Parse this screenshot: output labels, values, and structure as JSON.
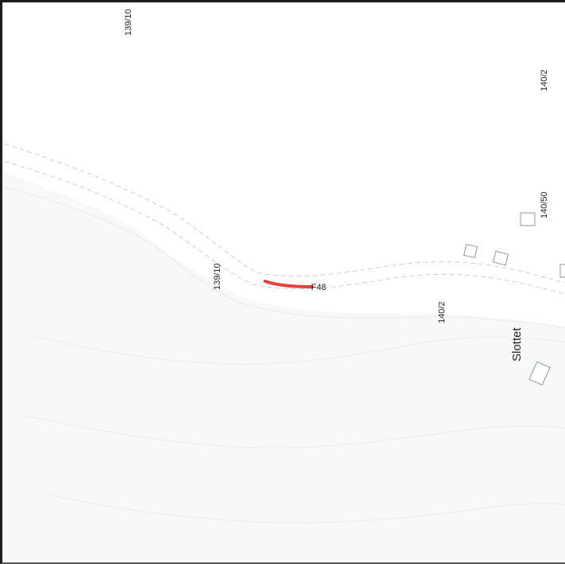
{
  "map": {
    "highlight_color": "#e8403f",
    "road_label": "F48",
    "parcel_labels": [
      "139/10",
      "140/2",
      "140/50",
      "139/10",
      "140/2"
    ],
    "place_name": "Slottet"
  }
}
